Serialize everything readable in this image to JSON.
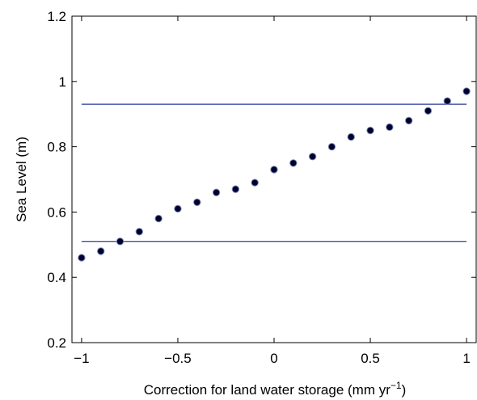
{
  "chart_data": {
    "type": "scatter",
    "title": "",
    "xlabel": "Correction for land water storage (mm yr",
    "xlabel_superscript": "−1",
    "xlabel_suffix": ")",
    "ylabel": "Sea Level (m)",
    "xlim": [
      -1.05,
      1.05
    ],
    "ylim": [
      0.2,
      1.2
    ],
    "xticks": [
      -1,
      -0.5,
      0,
      0.5,
      1
    ],
    "xtick_labels": [
      "−1",
      "−0.5",
      "0",
      "0.5",
      "1"
    ],
    "yticks": [
      0.2,
      0.4,
      0.6,
      0.8,
      1.0,
      1.2
    ],
    "ytick_labels": [
      "0.2",
      "0.4",
      "0.6",
      "0.8",
      "1",
      "1.2"
    ],
    "grid": false,
    "series": [
      {
        "x": [
          -1.0,
          -0.9,
          -0.8,
          -0.7,
          -0.6,
          -0.5,
          -0.4,
          -0.3,
          -0.2,
          -0.1,
          0.0,
          0.1,
          0.2,
          0.3,
          0.4,
          0.5,
          0.6,
          0.7,
          0.8,
          0.9,
          1.0
        ],
        "y": [
          0.46,
          0.48,
          0.51,
          0.54,
          0.58,
          0.61,
          0.63,
          0.66,
          0.67,
          0.69,
          0.73,
          0.75,
          0.77,
          0.8,
          0.83,
          0.85,
          0.86,
          0.88,
          0.91,
          0.94,
          0.97
        ],
        "marker_color": "#000033",
        "marker_edge_color": "#7f8fb0"
      }
    ],
    "hlines": [
      {
        "y": 0.93,
        "xmin": -1.0,
        "xmax": 1.0,
        "color": "#2b3f9a"
      },
      {
        "y": 0.51,
        "xmin": -1.0,
        "xmax": 1.0,
        "color": "#2b3f9a"
      }
    ]
  }
}
